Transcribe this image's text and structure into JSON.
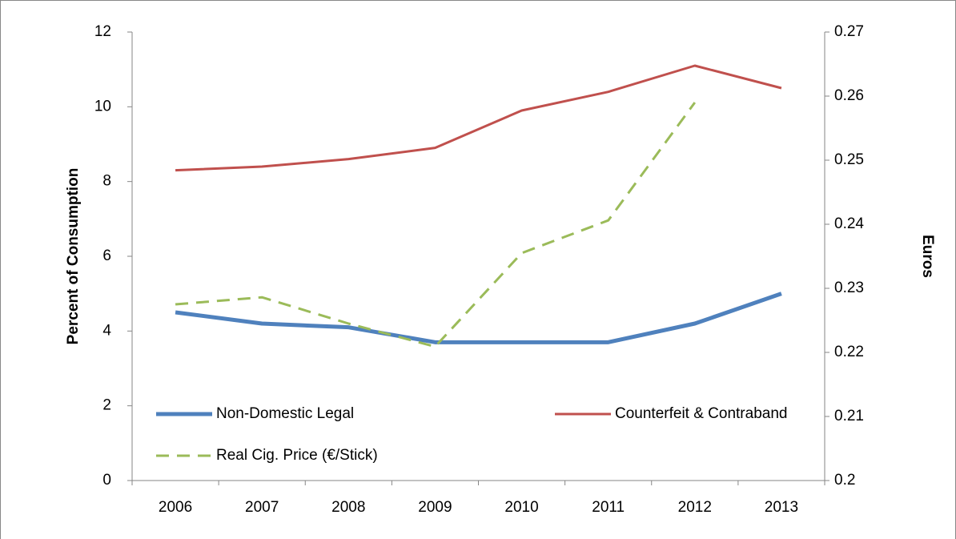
{
  "chart_data": {
    "type": "line",
    "categories": [
      "2006",
      "2007",
      "2008",
      "2009",
      "2010",
      "2011",
      "2012",
      "2013"
    ],
    "ylabel": "Percent of Consumption",
    "y2label": "Euros",
    "ylim": [
      0,
      12
    ],
    "yticks": [
      0,
      2,
      4,
      6,
      8,
      10,
      12
    ],
    "y2lim": [
      0.2,
      0.27
    ],
    "y2ticks": [
      0.2,
      0.21,
      0.22,
      0.23,
      0.24,
      0.25,
      0.26,
      0.27
    ],
    "series": [
      {
        "name": "Non-Domestic Legal",
        "color": "#4f81bd",
        "width": 5,
        "dashed": false,
        "values": [
          4.5,
          4.2,
          4.1,
          3.7,
          3.7,
          3.7,
          4.2,
          5.0
        ]
      },
      {
        "name": "Counterfeit & Contraband",
        "color": "#c0504d",
        "width": 3,
        "dashed": false,
        "values": [
          8.3,
          8.4,
          8.6,
          8.9,
          9.9,
          10.4,
          11.1,
          10.5
        ]
      },
      {
        "name": "Real Cig. Price (€/Stick)",
        "color": "#9bbb59",
        "width": 3,
        "dashed": true,
        "axis": "y2",
        "values": [
          0.2275,
          0.2286,
          0.2245,
          0.2209,
          0.2355,
          0.2406,
          0.259,
          null
        ]
      }
    ]
  }
}
